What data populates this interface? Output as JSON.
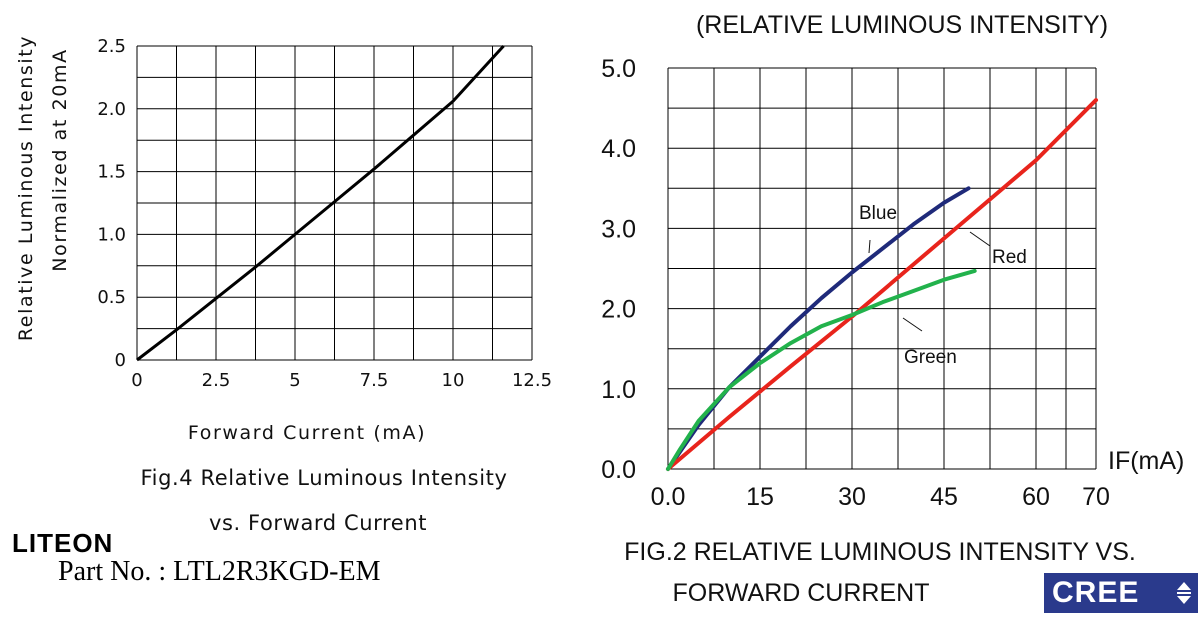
{
  "left": {
    "ylabel_line1": "Relative Luminous Intensity",
    "ylabel_line2": "Normalized at 20mA",
    "xlabel": "Forward Current (mA)",
    "caption_line1": "Fig.4 Relative Luminous Intensity",
    "caption_line2": "vs. Forward Current",
    "brand": "LITEON",
    "part_no": "Part  No. : LTL2R3KGD-EM"
  },
  "right": {
    "title": "(RELATIVE LUMINOUS INTENSITY)",
    "x_unit_label": "IF(mA)",
    "caption_line1": "FIG.2 RELATIVE LUMINOUS INTENSITY VS.",
    "caption_line2": "FORWARD CURRENT",
    "brand": "CREE",
    "label_blue": "Blue",
    "label_red": "Red",
    "label_green": "Green"
  },
  "colors": {
    "grid": "#000000",
    "left_line": "#000000",
    "blue": "#1f2a7a",
    "red": "#e8241c",
    "green": "#22b24c",
    "cree_bg": "#2a3a8c"
  },
  "chart_data": [
    {
      "type": "line",
      "title": "Fig.4 Relative Luminous Intensity vs. Forward Current",
      "xlabel": "Forward Current (mA)",
      "ylabel": "Relative Luminous Intensity Normalized at 20mA",
      "xlim": [
        0,
        12.5
      ],
      "ylim": [
        0,
        2.5
      ],
      "x_ticks": [
        "0",
        "2.5",
        "5",
        "7.5",
        "10",
        "12.5"
      ],
      "y_ticks": [
        "0",
        "0.5",
        "1.0",
        "1.5",
        "2.0",
        "2.5"
      ],
      "grid": true,
      "series": [
        {
          "x": [
            0,
            1.25,
            2.5,
            3.75,
            5,
            6.25,
            7.5,
            8.75,
            10,
            11.6
          ],
          "y": [
            0,
            0.24,
            0.49,
            0.74,
            1.0,
            1.26,
            1.52,
            1.79,
            2.06,
            2.5
          ]
        }
      ]
    },
    {
      "type": "line",
      "title": "(RELATIVE LUMINOUS INTENSITY)",
      "xlabel": "IF(mA)",
      "ylabel": "",
      "x_ticks": [
        "0.0",
        "15",
        "30",
        "45",
        "60",
        "70"
      ],
      "y_ticks": [
        "0.0",
        "1.0",
        "2.0",
        "3.0",
        "4.0",
        "5.0"
      ],
      "ylim": [
        0,
        5
      ],
      "grid": true,
      "series": [
        {
          "name": "Blue",
          "x": [
            0,
            5,
            10,
            15,
            20,
            25,
            30,
            35,
            40,
            45,
            49
          ],
          "y": [
            0,
            0.55,
            1.02,
            1.4,
            1.78,
            2.13,
            2.45,
            2.75,
            3.05,
            3.32,
            3.5
          ]
        },
        {
          "name": "Red",
          "x": [
            0,
            10,
            20,
            30,
            40,
            50,
            60,
            70
          ],
          "y": [
            0,
            0.65,
            1.28,
            1.9,
            2.55,
            3.2,
            3.85,
            4.6
          ]
        },
        {
          "name": "Green",
          "x": [
            0,
            2,
            5,
            10,
            15,
            20,
            25,
            30,
            35,
            40,
            45,
            50
          ],
          "y": [
            0,
            0.25,
            0.6,
            1.02,
            1.32,
            1.57,
            1.78,
            1.92,
            2.08,
            2.22,
            2.36,
            2.47
          ]
        }
      ]
    }
  ]
}
